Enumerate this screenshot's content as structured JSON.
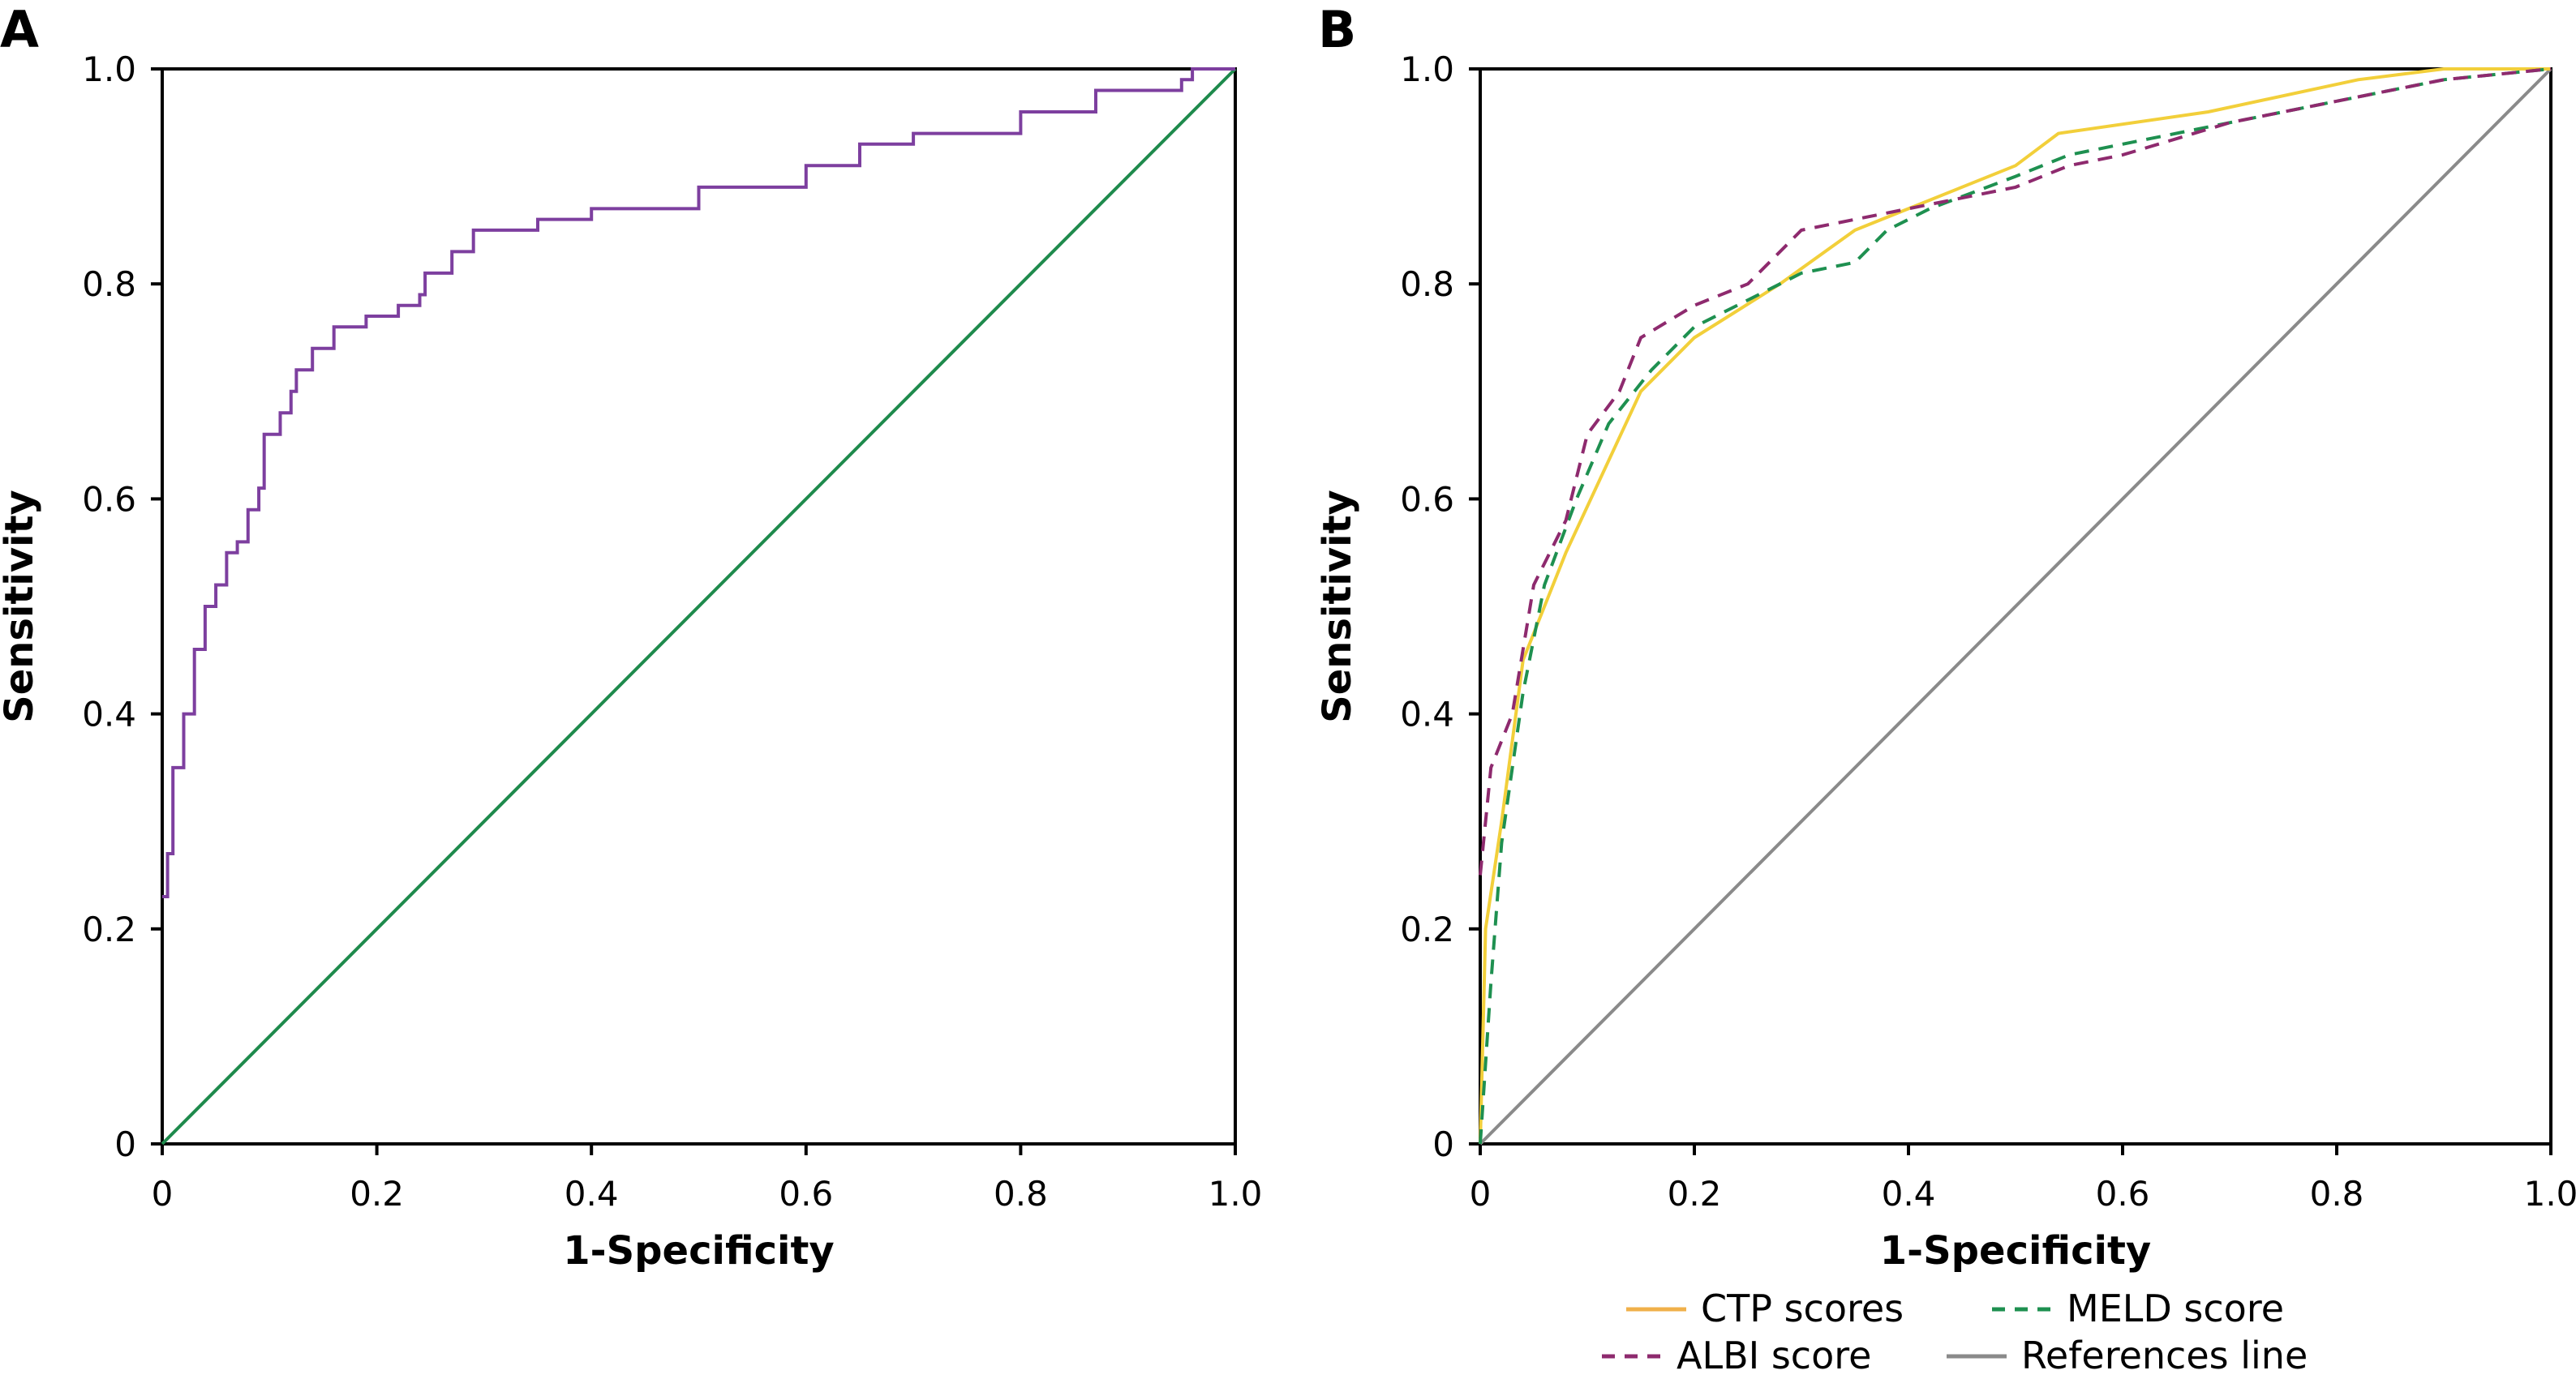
{
  "chart_data": [
    {
      "panel_label": "A",
      "type": "line",
      "xlabel": "1-Specificity",
      "ylabel": "Sensitivity",
      "xlim": [
        0,
        1
      ],
      "ylim": [
        0,
        1
      ],
      "xticks": [
        "0",
        "0.2",
        "0.4",
        "0.6",
        "0.8",
        "1.0"
      ],
      "yticks": [
        "0",
        "0.2",
        "0.4",
        "0.6",
        "0.8",
        "1.0"
      ],
      "grid": false,
      "series": [
        {
          "color": "#7d3f9f",
          "style": "step",
          "points": [
            [
              0,
              0.23
            ],
            [
              0.005,
              0.23
            ],
            [
              0.005,
              0.27
            ],
            [
              0.01,
              0.3
            ],
            [
              0.01,
              0.35
            ],
            [
              0.02,
              0.38
            ],
            [
              0.02,
              0.4
            ],
            [
              0.03,
              0.42
            ],
            [
              0.03,
              0.46
            ],
            [
              0.04,
              0.5
            ],
            [
              0.05,
              0.52
            ],
            [
              0.06,
              0.55
            ],
            [
              0.07,
              0.56
            ],
            [
              0.08,
              0.59
            ],
            [
              0.09,
              0.61
            ],
            [
              0.095,
              0.66
            ],
            [
              0.11,
              0.68
            ],
            [
              0.12,
              0.7
            ],
            [
              0.125,
              0.72
            ],
            [
              0.14,
              0.74
            ],
            [
              0.16,
              0.76
            ],
            [
              0.19,
              0.77
            ],
            [
              0.22,
              0.78
            ],
            [
              0.24,
              0.79
            ],
            [
              0.245,
              0.81
            ],
            [
              0.27,
              0.83
            ],
            [
              0.29,
              0.85
            ],
            [
              0.35,
              0.86
            ],
            [
              0.4,
              0.87
            ],
            [
              0.5,
              0.89
            ],
            [
              0.6,
              0.91
            ],
            [
              0.65,
              0.93
            ],
            [
              0.7,
              0.94
            ],
            [
              0.8,
              0.96
            ],
            [
              0.87,
              0.98
            ],
            [
              0.95,
              0.99
            ],
            [
              0.96,
              1.0
            ],
            [
              1,
              1
            ]
          ]
        },
        {
          "color": "#1e8a4c",
          "style": "solid",
          "points": [
            [
              0,
              0
            ],
            [
              1,
              1
            ]
          ]
        }
      ]
    },
    {
      "panel_label": "B",
      "type": "line",
      "xlabel": "1-Specificity",
      "ylabel": "Sensitivity",
      "xlim": [
        0,
        1
      ],
      "ylim": [
        0,
        1
      ],
      "xticks": [
        "0",
        "0.2",
        "0.4",
        "0.6",
        "0.8",
        "1.0"
      ],
      "yticks": [
        "0",
        "0.2",
        "0.4",
        "0.6",
        "0.8",
        "1.0"
      ],
      "grid": false,
      "legend_position": "bottom",
      "series": [
        {
          "name": "CTP scores",
          "color": "#f2cf3a",
          "legend_color": "#f0b04a",
          "style": "solid",
          "points": [
            [
              0,
              0
            ],
            [
              0.005,
              0.2
            ],
            [
              0.02,
              0.3
            ],
            [
              0.04,
              0.45
            ],
            [
              0.08,
              0.55
            ],
            [
              0.15,
              0.7
            ],
            [
              0.2,
              0.75
            ],
            [
              0.28,
              0.8
            ],
            [
              0.35,
              0.85
            ],
            [
              0.4,
              0.87
            ],
            [
              0.5,
              0.91
            ],
            [
              0.54,
              0.94
            ],
            [
              0.68,
              0.96
            ],
            [
              0.82,
              0.99
            ],
            [
              0.9,
              1.0
            ],
            [
              1,
              1
            ]
          ]
        },
        {
          "name": "MELD score",
          "color": "#1e9050",
          "style": "dashed",
          "points": [
            [
              0,
              0
            ],
            [
              0.01,
              0.15
            ],
            [
              0.02,
              0.28
            ],
            [
              0.04,
              0.42
            ],
            [
              0.06,
              0.52
            ],
            [
              0.09,
              0.6
            ],
            [
              0.12,
              0.67
            ],
            [
              0.16,
              0.72
            ],
            [
              0.2,
              0.76
            ],
            [
              0.26,
              0.79
            ],
            [
              0.3,
              0.81
            ],
            [
              0.35,
              0.82
            ],
            [
              0.38,
              0.85
            ],
            [
              0.42,
              0.87
            ],
            [
              0.5,
              0.9
            ],
            [
              0.55,
              0.92
            ],
            [
              0.6,
              0.93
            ],
            [
              0.7,
              0.95
            ],
            [
              0.8,
              0.97
            ],
            [
              0.9,
              0.99
            ],
            [
              1,
              1
            ]
          ]
        },
        {
          "name": "ALBI score",
          "color": "#8e2a6e",
          "style": "dashed",
          "points": [
            [
              0,
              0.25
            ],
            [
              0.01,
              0.35
            ],
            [
              0.03,
              0.4
            ],
            [
              0.05,
              0.52
            ],
            [
              0.08,
              0.58
            ],
            [
              0.1,
              0.66
            ],
            [
              0.13,
              0.7
            ],
            [
              0.15,
              0.75
            ],
            [
              0.2,
              0.78
            ],
            [
              0.25,
              0.8
            ],
            [
              0.3,
              0.85
            ],
            [
              0.4,
              0.87
            ],
            [
              0.5,
              0.89
            ],
            [
              0.55,
              0.91
            ],
            [
              0.6,
              0.92
            ],
            [
              0.7,
              0.95
            ],
            [
              0.8,
              0.97
            ],
            [
              0.9,
              0.99
            ],
            [
              1,
              1
            ]
          ]
        },
        {
          "name": "References line",
          "color": "#8a8a8a",
          "style": "solid",
          "points": [
            [
              0,
              0
            ],
            [
              1,
              1
            ]
          ]
        }
      ]
    }
  ]
}
